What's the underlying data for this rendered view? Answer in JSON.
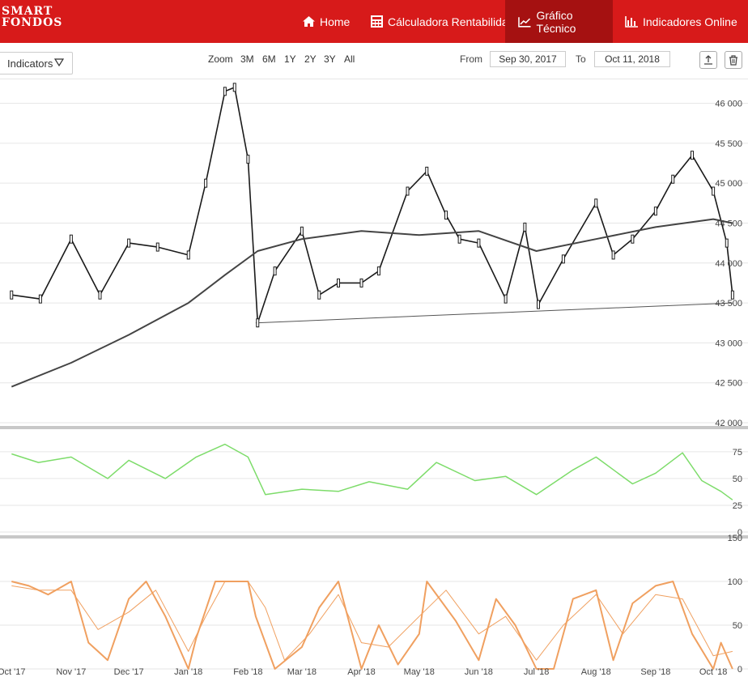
{
  "brand": {
    "line1": "SMART",
    "line2": "FONDOS"
  },
  "nav": [
    {
      "label": "Home",
      "icon": "home-icon"
    },
    {
      "label": "Cálculadora Rentabilidad",
      "icon": "calculator-icon"
    },
    {
      "label": "Gráfico Técnico",
      "icon": "line-chart-icon",
      "active": true
    },
    {
      "label": "Indicadores Online",
      "icon": "bar-chart-icon"
    }
  ],
  "toolbar": {
    "indicators_label": "Indicators",
    "zoom_label": "Zoom",
    "zoom_options": [
      "3M",
      "6M",
      "1Y",
      "2Y",
      "3Y",
      "All"
    ],
    "from_label": "From",
    "from_value": "Sep 30, 2017",
    "to_label": "To",
    "to_value": "Oct 11, 2018"
  },
  "colors": {
    "brand": "#d71a1a",
    "nav_active": "#a51111",
    "price": "#1a1a1a",
    "sma": "#444444",
    "rsi": "#7ddc6a",
    "stoch": "#f0a060"
  },
  "chart_data": [
    {
      "type": "line",
      "subtype": "candlestick with moving average and trendline",
      "x_tick_labels": [
        "Oct '17",
        "Nov '17",
        "Dec '17",
        "Jan '18",
        "Feb '18",
        "Mar '18",
        "Apr '18",
        "May '18",
        "Jun '18",
        "Jul '18",
        "Aug '18",
        "Sep '18",
        "Oct '18"
      ],
      "y_ticks": [
        "42 000",
        "42 500",
        "43 000",
        "43 500",
        "44 000",
        "44 500",
        "45 000",
        "45 500",
        "46 000"
      ],
      "y_tick_values": [
        42000,
        42500,
        43000,
        43500,
        44000,
        44500,
        45000,
        45500,
        46000
      ],
      "ylim": [
        42000,
        46300
      ],
      "grid": true,
      "series": [
        {
          "x": [
            "2017-10-01",
            "2017-10-16",
            "2017-11-01",
            "2017-11-16",
            "2017-12-01",
            "2017-12-16",
            "2018-01-01",
            "2018-01-10",
            "2018-01-20",
            "2018-01-25",
            "2018-02-01",
            "2018-02-06",
            "2018-02-15",
            "2018-03-01",
            "2018-03-10",
            "2018-03-20",
            "2018-04-01",
            "2018-04-10",
            "2018-04-25",
            "2018-05-05",
            "2018-05-15",
            "2018-05-22",
            "2018-06-01",
            "2018-06-15",
            "2018-06-25",
            "2018-07-02",
            "2018-07-15",
            "2018-08-01",
            "2018-08-10",
            "2018-08-20",
            "2018-09-01",
            "2018-09-10",
            "2018-09-20",
            "2018-10-01",
            "2018-10-08",
            "2018-10-11"
          ],
          "values": [
            43600,
            43550,
            44300,
            43600,
            44250,
            44200,
            44100,
            45000,
            46150,
            46200,
            45300,
            43250,
            43900,
            44400,
            43600,
            43750,
            43750,
            43900,
            44900,
            45150,
            44600,
            44300,
            44250,
            43550,
            44450,
            43480,
            44050,
            44750,
            44100,
            44300,
            44650,
            45050,
            45350,
            44900,
            44250,
            43600
          ]
        },
        {
          "x": [
            "2017-10-01",
            "2017-11-01",
            "2017-12-01",
            "2018-01-01",
            "2018-01-20",
            "2018-02-06",
            "2018-03-01",
            "2018-04-01",
            "2018-05-01",
            "2018-06-01",
            "2018-07-01",
            "2018-08-01",
            "2018-09-01",
            "2018-10-01",
            "2018-10-11"
          ],
          "values": [
            42450,
            42750,
            43100,
            43500,
            43850,
            44150,
            44300,
            44400,
            44350,
            44400,
            44150,
            44300,
            44450,
            44550,
            44500
          ]
        },
        {
          "x": [
            "2018-02-05",
            "2018-10-11"
          ],
          "values": [
            43250,
            43500
          ]
        }
      ]
    },
    {
      "type": "line",
      "y_ticks": [
        "0",
        "25",
        "50",
        "75"
      ],
      "y_tick_values": [
        0,
        25,
        50,
        75
      ],
      "ylim": [
        0,
        90
      ],
      "grid": true,
      "series": [
        {
          "x": [
            "2017-10-01",
            "2017-10-15",
            "2017-11-01",
            "2017-11-20",
            "2017-12-01",
            "2017-12-20",
            "2018-01-05",
            "2018-01-20",
            "2018-02-01",
            "2018-02-10",
            "2018-03-01",
            "2018-03-20",
            "2018-04-05",
            "2018-04-25",
            "2018-05-10",
            "2018-05-30",
            "2018-06-15",
            "2018-07-01",
            "2018-07-20",
            "2018-08-01",
            "2018-08-20",
            "2018-09-01",
            "2018-09-15",
            "2018-09-25",
            "2018-10-05",
            "2018-10-11"
          ],
          "values": [
            73,
            65,
            70,
            50,
            67,
            50,
            70,
            82,
            70,
            35,
            40,
            38,
            47,
            40,
            65,
            48,
            52,
            35,
            58,
            70,
            45,
            55,
            74,
            48,
            38,
            30
          ]
        }
      ]
    },
    {
      "type": "line",
      "y_ticks": [
        "0",
        "50",
        "100",
        "150"
      ],
      "y_tick_values": [
        0,
        50,
        100,
        150
      ],
      "ylim": [
        0,
        150
      ],
      "grid": true,
      "series": [
        {
          "x": [
            "2017-10-01",
            "2017-10-10",
            "2017-10-20",
            "2017-11-01",
            "2017-11-10",
            "2017-11-20",
            "2017-12-01",
            "2017-12-10",
            "2017-12-20",
            "2018-01-01",
            "2018-01-05",
            "2018-01-15",
            "2018-01-25",
            "2018-02-01",
            "2018-02-05",
            "2018-02-15",
            "2018-03-01",
            "2018-03-10",
            "2018-03-20",
            "2018-04-01",
            "2018-04-10",
            "2018-04-20",
            "2018-05-01",
            "2018-05-05",
            "2018-05-20",
            "2018-06-01",
            "2018-06-10",
            "2018-06-20",
            "2018-07-01",
            "2018-07-10",
            "2018-07-20",
            "2018-08-01",
            "2018-08-10",
            "2018-08-20",
            "2018-09-01",
            "2018-09-10",
            "2018-09-20",
            "2018-10-01",
            "2018-10-05",
            "2018-10-11"
          ],
          "values": [
            100,
            95,
            85,
            100,
            30,
            10,
            80,
            100,
            60,
            0,
            35,
            100,
            100,
            100,
            60,
            0,
            25,
            70,
            100,
            0,
            50,
            5,
            40,
            100,
            55,
            10,
            80,
            50,
            0,
            0,
            80,
            90,
            10,
            75,
            95,
            100,
            40,
            0,
            30,
            0
          ]
        },
        {
          "x": [
            "2017-10-01",
            "2017-10-15",
            "2017-11-01",
            "2017-11-15",
            "2017-12-01",
            "2017-12-15",
            "2018-01-01",
            "2018-01-10",
            "2018-01-20",
            "2018-02-01",
            "2018-02-10",
            "2018-02-20",
            "2018-03-05",
            "2018-03-20",
            "2018-04-01",
            "2018-04-15",
            "2018-05-01",
            "2018-05-15",
            "2018-06-01",
            "2018-06-15",
            "2018-07-01",
            "2018-07-15",
            "2018-08-01",
            "2018-08-15",
            "2018-09-01",
            "2018-09-15",
            "2018-10-01",
            "2018-10-11"
          ],
          "values": [
            95,
            90,
            90,
            45,
            65,
            90,
            20,
            60,
            100,
            100,
            70,
            10,
            40,
            85,
            30,
            25,
            60,
            90,
            40,
            60,
            10,
            50,
            85,
            40,
            85,
            80,
            15,
            20
          ]
        }
      ]
    }
  ]
}
